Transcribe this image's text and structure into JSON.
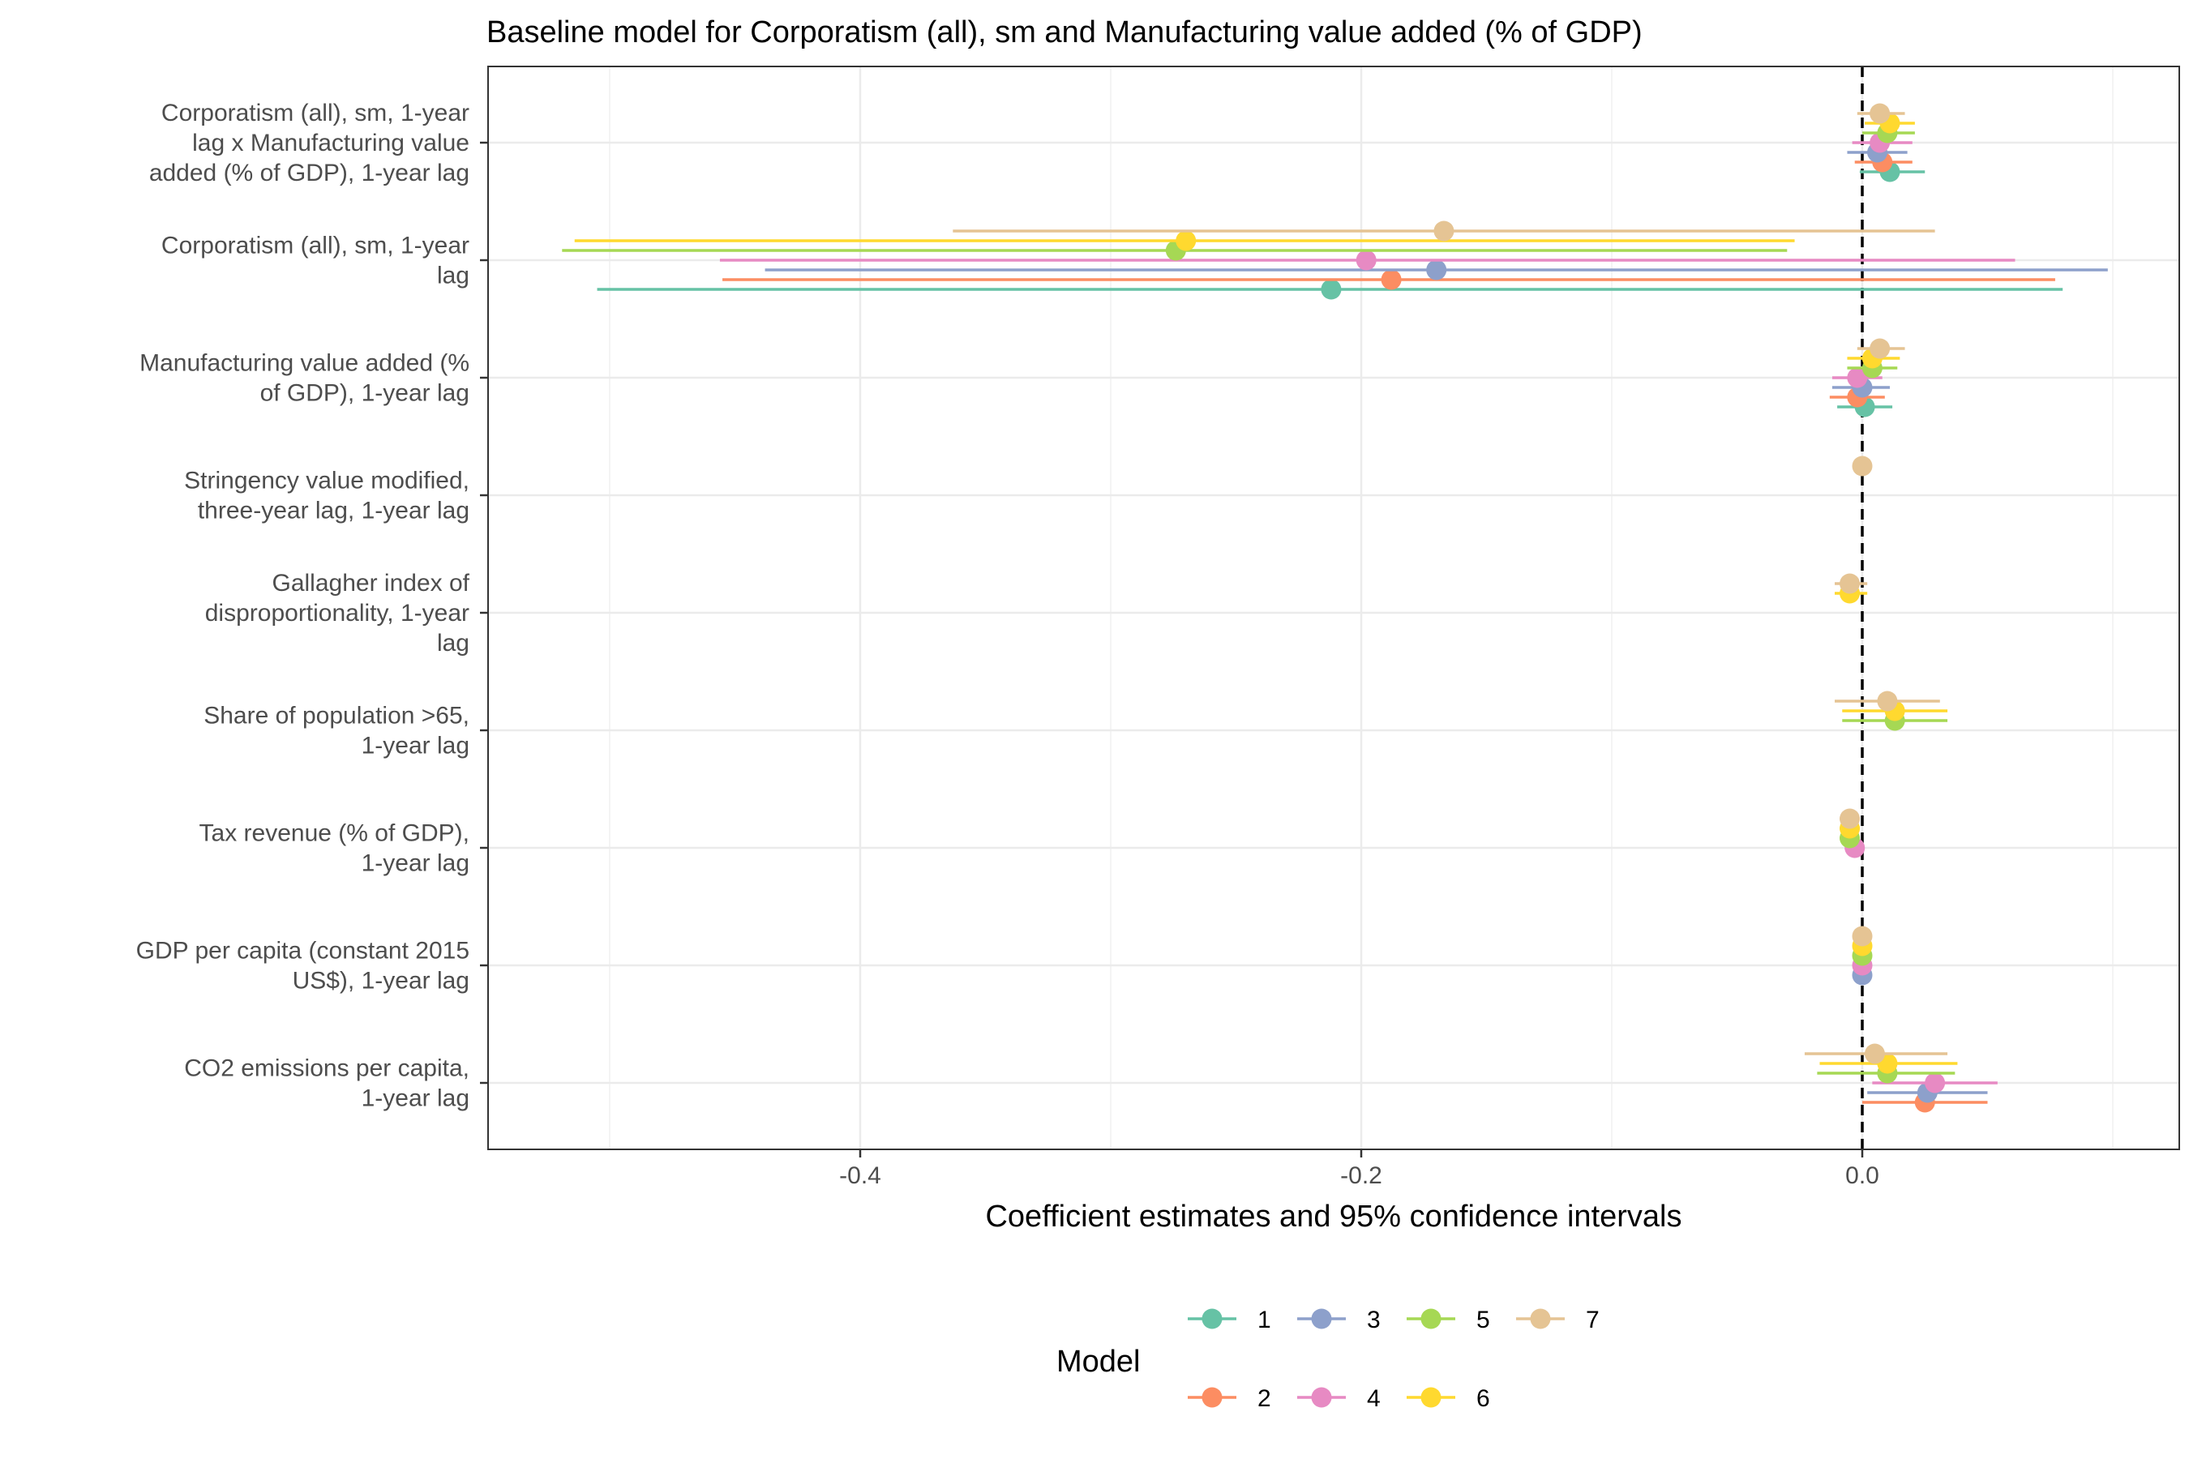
{
  "chart_data": {
    "type": "scatter",
    "title": "Baseline model for Corporatism (all), sm and Manufacturing value added (% of GDP)",
    "xlabel": "Coefficient estimates and 95% confidence intervals",
    "xlim": [
      -0.55,
      0.11
    ],
    "x_ticks": [
      {
        "value": -0.4,
        "label": "-0.4"
      },
      {
        "value": -0.2,
        "label": "-0.2"
      },
      {
        "value": 0.0,
        "label": "0.0"
      }
    ],
    "reference_line": 0,
    "grid": true,
    "legend": {
      "title": "Model",
      "placement": "bottom",
      "entries": [
        {
          "label": "1",
          "color": "#66c2a5"
        },
        {
          "label": "2",
          "color": "#fc8d62"
        },
        {
          "label": "3",
          "color": "#8da0cb"
        },
        {
          "label": "4",
          "color": "#e78ac3"
        },
        {
          "label": "5",
          "color": "#a6d854"
        },
        {
          "label": "6",
          "color": "#ffd92f"
        },
        {
          "label": "7",
          "color": "#e5c494"
        }
      ]
    },
    "terms": [
      {
        "label_lines": [
          "Corporatism (all), sm, 1-year",
          "lag x Manufacturing value",
          "added (% of GDP), 1-year lag"
        ],
        "estimates": [
          {
            "model": "1",
            "est": 0.011,
            "lo": -0.001,
            "hi": 0.025
          },
          {
            "model": "2",
            "est": 0.008,
            "lo": -0.003,
            "hi": 0.02
          },
          {
            "model": "3",
            "est": 0.006,
            "lo": -0.006,
            "hi": 0.018
          },
          {
            "model": "4",
            "est": 0.007,
            "lo": -0.004,
            "hi": 0.02
          },
          {
            "model": "5",
            "est": 0.01,
            "lo": 0.0,
            "hi": 0.021
          },
          {
            "model": "6",
            "est": 0.011,
            "lo": 0.001,
            "hi": 0.021
          },
          {
            "model": "7",
            "est": 0.007,
            "lo": -0.002,
            "hi": 0.017
          }
        ]
      },
      {
        "label_lines": [
          "Corporatism (all), sm, 1-year",
          "lag"
        ],
        "estimates": [
          {
            "model": "1",
            "est": -0.212,
            "lo": -0.505,
            "hi": 0.08
          },
          {
            "model": "2",
            "est": -0.188,
            "lo": -0.455,
            "hi": 0.077
          },
          {
            "model": "3",
            "est": -0.17,
            "lo": -0.438,
            "hi": 0.098
          },
          {
            "model": "4",
            "est": -0.198,
            "lo": -0.456,
            "hi": 0.061
          },
          {
            "model": "5",
            "est": -0.274,
            "lo": -0.519,
            "hi": -0.03
          },
          {
            "model": "6",
            "est": -0.27,
            "lo": -0.514,
            "hi": -0.027
          },
          {
            "model": "7",
            "est": -0.167,
            "lo": -0.363,
            "hi": 0.029
          }
        ]
      },
      {
        "label_lines": [
          "Manufacturing value added (%",
          "of GDP), 1-year lag"
        ],
        "estimates": [
          {
            "model": "1",
            "est": 0.001,
            "lo": -0.01,
            "hi": 0.012
          },
          {
            "model": "2",
            "est": -0.002,
            "lo": -0.013,
            "hi": 0.009
          },
          {
            "model": "3",
            "est": 0.0,
            "lo": -0.012,
            "hi": 0.011
          },
          {
            "model": "4",
            "est": -0.002,
            "lo": -0.012,
            "hi": 0.008
          },
          {
            "model": "5",
            "est": 0.004,
            "lo": -0.006,
            "hi": 0.014
          },
          {
            "model": "6",
            "est": 0.004,
            "lo": -0.006,
            "hi": 0.015
          },
          {
            "model": "7",
            "est": 0.007,
            "lo": -0.002,
            "hi": 0.017
          }
        ]
      },
      {
        "label_lines": [
          "Stringency value modified,",
          "three-year lag, 1-year lag"
        ],
        "estimates": [
          {
            "model": "7",
            "est": 0.0,
            "lo": -0.001,
            "hi": 0.001
          }
        ]
      },
      {
        "label_lines": [
          "Gallagher index of",
          "disproportionality, 1-year",
          "lag"
        ],
        "estimates": [
          {
            "model": "6",
            "est": -0.005,
            "lo": -0.011,
            "hi": 0.002
          },
          {
            "model": "7",
            "est": -0.005,
            "lo": -0.011,
            "hi": 0.002
          }
        ]
      },
      {
        "label_lines": [
          "Share of population >65,",
          "1-year lag"
        ],
        "estimates": [
          {
            "model": "5",
            "est": 0.013,
            "lo": -0.008,
            "hi": 0.034
          },
          {
            "model": "6",
            "est": 0.013,
            "lo": -0.008,
            "hi": 0.034
          },
          {
            "model": "7",
            "est": 0.01,
            "lo": -0.011,
            "hi": 0.031
          }
        ]
      },
      {
        "label_lines": [
          "Tax revenue (% of GDP),",
          "1-year lag"
        ],
        "estimates": [
          {
            "model": "4",
            "est": -0.003,
            "lo": -0.007,
            "hi": 0.0
          },
          {
            "model": "5",
            "est": -0.005,
            "lo": -0.009,
            "hi": -0.001
          },
          {
            "model": "6",
            "est": -0.005,
            "lo": -0.009,
            "hi": -0.001
          },
          {
            "model": "7",
            "est": -0.005,
            "lo": -0.009,
            "hi": -0.001
          }
        ]
      },
      {
        "label_lines": [
          "GDP per capita (constant 2015",
          "US$), 1-year lag"
        ],
        "estimates": [
          {
            "model": "3",
            "est": 0.0,
            "lo": -0.0005,
            "hi": 0.0005
          },
          {
            "model": "4",
            "est": 0.0,
            "lo": -0.0005,
            "hi": 0.0005
          },
          {
            "model": "5",
            "est": 0.0,
            "lo": -0.0005,
            "hi": 0.0005
          },
          {
            "model": "6",
            "est": 0.0,
            "lo": -0.0005,
            "hi": 0.0005
          },
          {
            "model": "7",
            "est": 0.0,
            "lo": -0.0005,
            "hi": 0.0005
          }
        ]
      },
      {
        "label_lines": [
          "CO2 emissions per capita,",
          "1-year lag"
        ],
        "estimates": [
          {
            "model": "2",
            "est": 0.025,
            "lo": 0.0,
            "hi": 0.05
          },
          {
            "model": "3",
            "est": 0.026,
            "lo": 0.002,
            "hi": 0.05
          },
          {
            "model": "4",
            "est": 0.029,
            "lo": 0.004,
            "hi": 0.054
          },
          {
            "model": "5",
            "est": 0.01,
            "lo": -0.018,
            "hi": 0.037
          },
          {
            "model": "6",
            "est": 0.01,
            "lo": -0.017,
            "hi": 0.038
          },
          {
            "model": "7",
            "est": 0.005,
            "lo": -0.023,
            "hi": 0.034
          }
        ]
      }
    ]
  }
}
